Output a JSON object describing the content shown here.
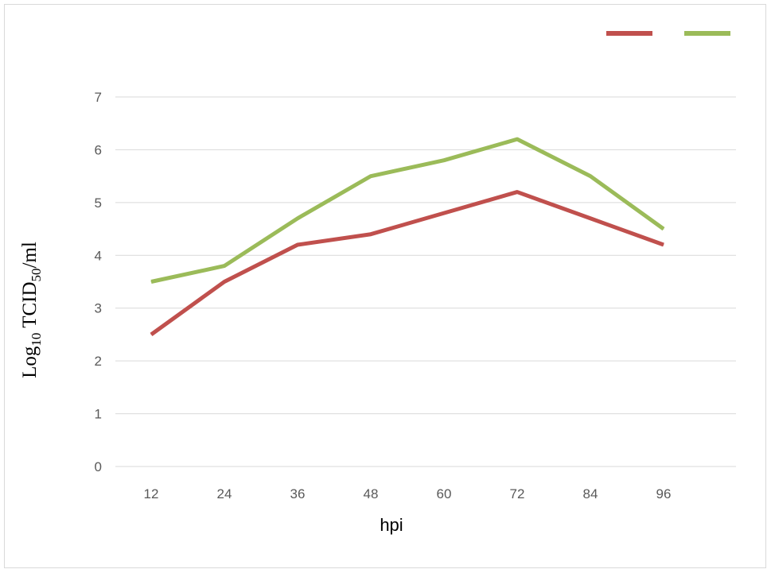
{
  "chart_data": {
    "type": "line",
    "categories": [
      "12",
      "24",
      "36",
      "48",
      "60",
      "72",
      "84",
      "96"
    ],
    "series": [
      {
        "color": "#c0504d",
        "values": [
          2.5,
          3.5,
          4.2,
          4.4,
          4.8,
          5.2,
          4.7,
          4.2
        ]
      },
      {
        "color": "#9bbb59",
        "values": [
          3.5,
          3.8,
          4.7,
          5.5,
          5.8,
          6.2,
          5.5,
          4.5
        ]
      }
    ],
    "yticks": [
      "0",
      "1",
      "2",
      "3",
      "4",
      "5",
      "6",
      "7"
    ],
    "ylim": [
      0,
      7
    ],
    "xlabel": "hpi",
    "ylabel": {
      "prefix": "Log",
      "sub1": "10",
      "middle": " TCID",
      "sub2": "50",
      "suffix": "/ml"
    },
    "grid": "horizontal",
    "legend_position": "top-right",
    "gridline_color": "#d9d9d9"
  }
}
